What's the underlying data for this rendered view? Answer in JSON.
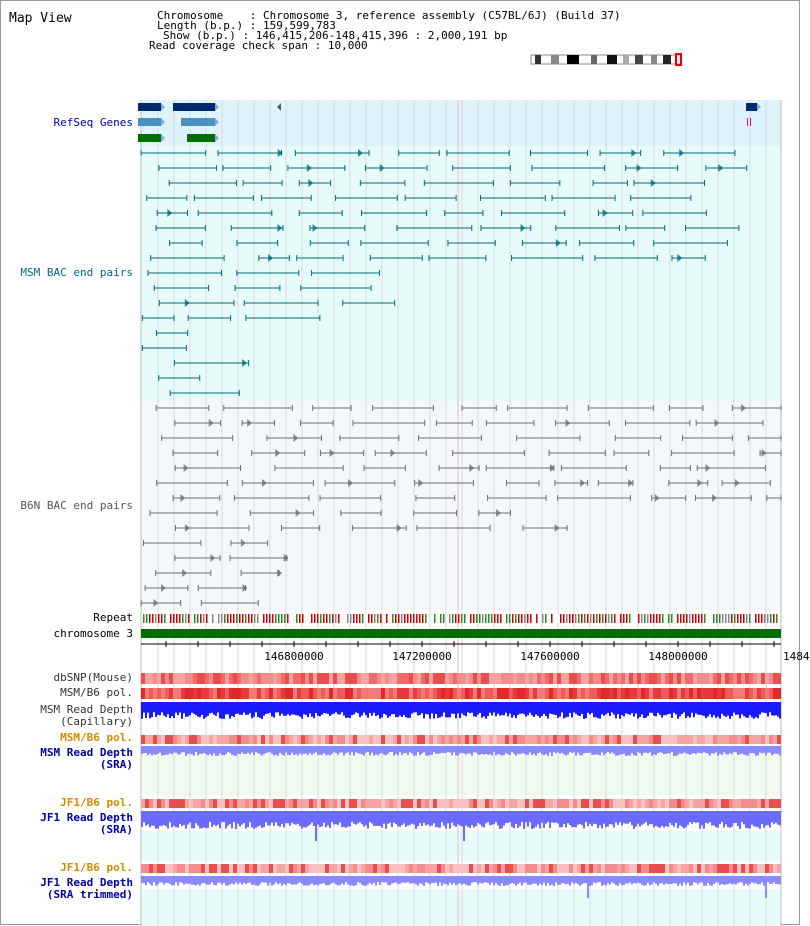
{
  "title": "Map View",
  "info": {
    "chromosome_label": "Chromosome",
    "chromosome_value": "Chromosome 3, reference assembly (C57BL/6J) (Build 37)",
    "length_label": "Length (b.p.)",
    "length_value": "159,599,783",
    "show_label": "Show (b.p.)",
    "show_value": "146,415,206-148,415,396 : 2,000,191 bp",
    "coverage_label": "Read coverage check span",
    "coverage_value": "10,000"
  },
  "tracks": {
    "refseq": "RefSeq Genes",
    "msm_bac": "MSM BAC end pairs",
    "b6n_bac": "B6N BAC end pairs",
    "repeat": "Repeat",
    "chromosome": "chromosome 3",
    "dbsnp": "dbSNP(Mouse)",
    "msm_b6_pol": "MSM/B6 pol.",
    "msm_depth_cap_1": "MSM Read Depth",
    "msm_depth_cap_2": "(Capillary)",
    "msm_b6_pol_2": "MSM/B6 pol.",
    "msm_depth_sra_1": "MSM Read Depth",
    "msm_depth_sra_2": "(SRA)",
    "jf1_b6_pol": "JF1/B6 pol.",
    "jf1_depth_1": "JF1 Read Depth",
    "jf1_depth_2": "(SRA)",
    "jf1_b6_pol_2": "JF1/B6 pol.",
    "jf1_trim_1": "JF1 Read Depth",
    "jf1_trim_2": "(SRA trimmed)"
  },
  "axis": {
    "ticks": [
      "146800000",
      "147200000",
      "147600000",
      "148000000",
      "1484"
    ]
  },
  "colors": {
    "refseq_bg": "#def3fb",
    "msm_bg": "#e8fbfb",
    "b6n_bg": "#f4f7fb",
    "msm_pair": "#006a82",
    "b6n_pair": "#6e6e6e",
    "label_blue": "#0000aa",
    "label_teal": "#006a82",
    "label_orange": "#d68a00",
    "chromosome_green": "#006e00"
  }
}
